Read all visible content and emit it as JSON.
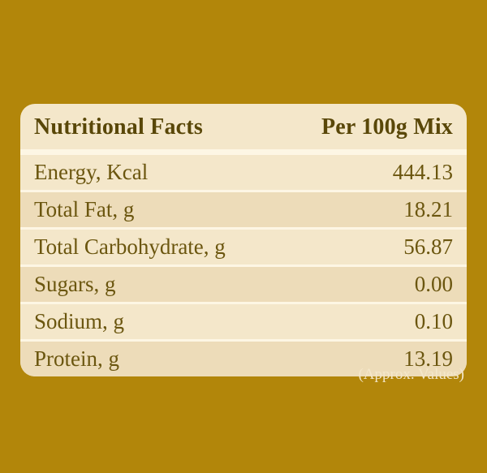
{
  "colors": {
    "bg": "#b2860a",
    "card": "#f4e7ca",
    "row-alt": "#eddcb9",
    "divider": "#fdf6e4",
    "ink": "#6b560f",
    "ink-header": "#594708",
    "footnote": "#f4e7ca"
  },
  "table": {
    "header": {
      "title": "Nutritional Facts",
      "unit": "Per 100g Mix"
    },
    "rows": [
      {
        "label": "Energy, Kcal",
        "value": "444.13"
      },
      {
        "label": "Total Fat, g",
        "value": "18.21"
      },
      {
        "label": "Total Carbohydrate, g",
        "value": "56.87"
      },
      {
        "label": "Sugars, g",
        "value": "0.00"
      },
      {
        "label": "Sodium, g",
        "value": "0.10"
      },
      {
        "label": "Protein, g",
        "value": "13.19"
      }
    ],
    "footnote": "(Approx. Values)"
  }
}
